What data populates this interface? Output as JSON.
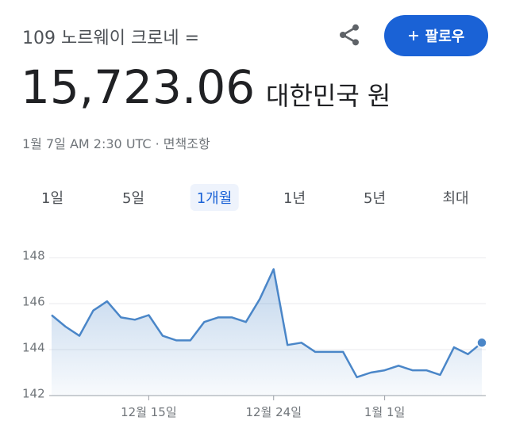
{
  "header": {
    "pair": "109 노르웨이 크로네 =",
    "amount": "15,723.06",
    "unit": "대한민국 원",
    "time": "1월 7일 AM 2:30 UTC · 면책조항",
    "follow": "팔로우"
  },
  "tabs": [
    "1일",
    "5일",
    "1개월",
    "1년",
    "5년",
    "최대"
  ],
  "selected_tab": 2,
  "chart_data": {
    "type": "line",
    "categories": [
      null,
      null,
      null,
      null,
      null,
      null,
      null,
      "12월 15일",
      null,
      null,
      null,
      null,
      null,
      null,
      null,
      null,
      "12월 24일",
      null,
      null,
      null,
      null,
      null,
      null,
      null,
      "1월 1일",
      null,
      null,
      null,
      null,
      null,
      null,
      null
    ],
    "series": [
      {
        "color": "#4a86c8",
        "values": [
          145.5,
          145.0,
          144.6,
          145.7,
          146.1,
          145.4,
          145.3,
          145.5,
          144.6,
          144.4,
          144.4,
          145.2,
          145.4,
          145.4,
          145.2,
          146.2,
          147.5,
          144.2,
          144.3,
          143.9,
          143.9,
          143.9,
          142.8,
          143.0,
          143.1,
          143.3,
          143.1,
          143.1,
          142.9,
          144.1,
          143.8,
          144.3
        ]
      }
    ],
    "ylim": [
      142,
      148
    ],
    "yticks": [
      142,
      144,
      146,
      148
    ],
    "grid": true
  }
}
